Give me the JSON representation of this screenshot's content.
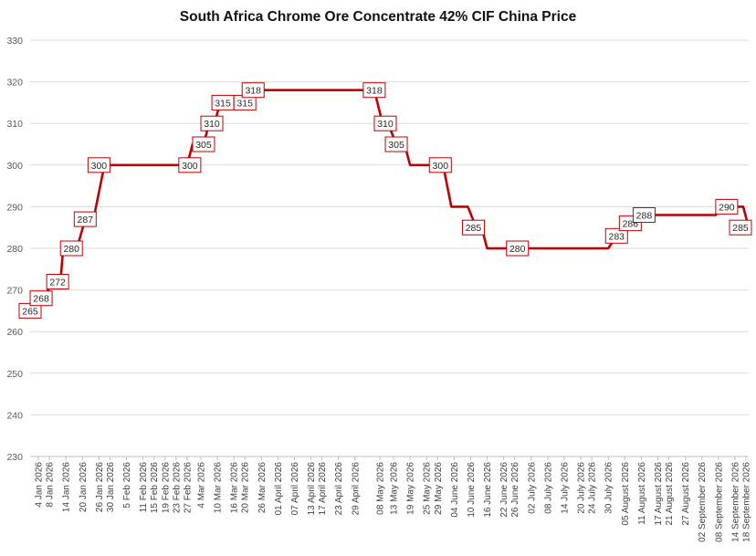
{
  "chart_data": {
    "type": "line",
    "title": "South Africa Chrome Ore Concentrate 42% CIF China Price",
    "xlabel": "",
    "ylabel": "",
    "ylim": [
      230,
      330
    ],
    "yticks": [
      230,
      240,
      250,
      260,
      270,
      280,
      290,
      300,
      310,
      320,
      330
    ],
    "grid": true,
    "legend": "none",
    "line_color": "#c00000",
    "x_tick_labels": [
      "4 Jan 2026",
      "8 Jan 2026",
      "14 Jan 2026",
      "20 Jan 2026",
      "26 Jan 2026",
      "30 Jan 2026",
      "5 Feb 2026",
      "11 Feb 2026",
      "15 Feb 2026",
      "19 Feb 2026",
      "23 Feb 2026",
      "27 Feb 2026",
      "4 Mar 2026",
      "10 Mar 2026",
      "16 Mar 2026",
      "20 Mar 2026",
      "26 Mar 2026",
      "01 April 2026",
      "07 April 2026",
      "13 April 2026",
      "17 April 2026",
      "23 April 2026",
      "29 April 2026",
      "08 May 2026",
      "13 May 2026",
      "19 May 2026",
      "25 May 2026",
      "29 May 2026",
      "04 June 2026",
      "10 June 2026",
      "16 June 2026",
      "22 June 2026",
      "26 June 2026",
      "02 July 2026",
      "08 July 2026",
      "14 July 2026",
      "20 July 2026",
      "24 July 2026",
      "30 July 2026",
      "05 August 2026",
      "11 August 2026",
      "17 August 2026",
      "21 August 2026",
      "27 August 2026",
      "02 September 2026",
      "08 September 2026",
      "14 September 2026",
      "18 September 2026"
    ],
    "series": [
      {
        "name": "",
        "points": [
          [
            "2026-01-01",
            265
          ],
          [
            "2026-01-04",
            265
          ],
          [
            "2026-01-05",
            268
          ],
          [
            "2026-01-07",
            268
          ],
          [
            "2026-01-08",
            272
          ],
          [
            "2026-01-12",
            272
          ],
          [
            "2026-01-13",
            280
          ],
          [
            "2026-01-18",
            280
          ],
          [
            "2026-01-21",
            287
          ],
          [
            "2026-01-24",
            287
          ],
          [
            "2026-01-28",
            300
          ],
          [
            "2026-02-27",
            300
          ],
          [
            "2026-03-01",
            305
          ],
          [
            "2026-03-05",
            305
          ],
          [
            "2026-03-07",
            310
          ],
          [
            "2026-03-09",
            310
          ],
          [
            "2026-03-11",
            315
          ],
          [
            "2026-03-22",
            315
          ],
          [
            "2026-03-24",
            318
          ],
          [
            "2026-05-06",
            318
          ],
          [
            "2026-05-09",
            310
          ],
          [
            "2026-05-11",
            310
          ],
          [
            "2026-05-14",
            305
          ],
          [
            "2026-05-17",
            305
          ],
          [
            "2026-05-19",
            300
          ],
          [
            "2026-05-31",
            300
          ],
          [
            "2026-06-03",
            290
          ],
          [
            "2026-06-09",
            290
          ],
          [
            "2026-06-12",
            285
          ],
          [
            "2026-06-14",
            285
          ],
          [
            "2026-06-16",
            280
          ],
          [
            "2026-07-30",
            280
          ],
          [
            "2026-08-02",
            283
          ],
          [
            "2026-08-05",
            283
          ],
          [
            "2026-08-07",
            286
          ],
          [
            "2026-08-09",
            286
          ],
          [
            "2026-08-12",
            288
          ],
          [
            "2026-09-07",
            288
          ],
          [
            "2026-09-09",
            290
          ],
          [
            "2026-09-17",
            290
          ],
          [
            "2026-09-19",
            285
          ]
        ]
      }
    ],
    "data_labels": [
      {
        "x": "2026-01-01",
        "y": 265,
        "text": "265"
      },
      {
        "x": "2026-01-05",
        "y": 268,
        "text": "268"
      },
      {
        "x": "2026-01-11",
        "y": 272,
        "text": "272"
      },
      {
        "x": "2026-01-16",
        "y": 280,
        "text": "280"
      },
      {
        "x": "2026-01-21",
        "y": 287,
        "text": "287"
      },
      {
        "x": "2026-01-26",
        "y": 300,
        "text": "300"
      },
      {
        "x": "2026-02-28",
        "y": 300,
        "text": "300"
      },
      {
        "x": "2026-03-05",
        "y": 305,
        "text": "305"
      },
      {
        "x": "2026-03-08",
        "y": 310,
        "text": "310"
      },
      {
        "x": "2026-03-12",
        "y": 315,
        "text": "315"
      },
      {
        "x": "2026-03-20",
        "y": 315,
        "text": "315"
      },
      {
        "x": "2026-03-23",
        "y": 318,
        "text": "318"
      },
      {
        "x": "2026-05-06",
        "y": 318,
        "text": "318"
      },
      {
        "x": "2026-05-10",
        "y": 310,
        "text": "310"
      },
      {
        "x": "2026-05-14",
        "y": 305,
        "text": "305"
      },
      {
        "x": "2026-05-30",
        "y": 300,
        "text": "300"
      },
      {
        "x": "2026-06-11",
        "y": 285,
        "text": "285"
      },
      {
        "x": "2026-06-27",
        "y": 280,
        "text": "280"
      },
      {
        "x": "2026-08-02",
        "y": 283,
        "text": "283"
      },
      {
        "x": "2026-08-07",
        "y": 286,
        "text": "286"
      },
      {
        "x": "2026-08-12",
        "y": 288,
        "text": "288"
      },
      {
        "x": "2026-09-11",
        "y": 290,
        "text": "290"
      },
      {
        "x": "2026-09-19",
        "y": 285,
        "text": "285"
      }
    ]
  }
}
